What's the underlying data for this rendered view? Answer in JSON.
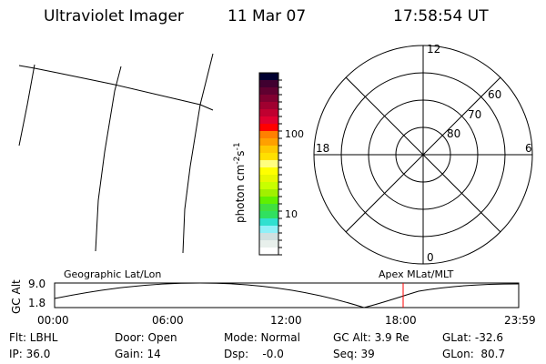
{
  "header": {
    "title": "Ultraviolet Imager",
    "date": "11 Mar 07",
    "time": "17:58:54 UT"
  },
  "colorbar": {
    "label": "photon cm",
    "label_exp1": "-2",
    "label_s": "s",
    "label_exp2": "-1",
    "ticks": [
      "100",
      "10"
    ],
    "colors": [
      "#000030",
      "#400030",
      "#600030",
      "#800030",
      "#a00030",
      "#c00030",
      "#e00030",
      "#ff0000",
      "#ff8000",
      "#ffa000",
      "#ffc800",
      "#ffe000",
      "#ffff80",
      "#ffff00",
      "#e8f800",
      "#c8ff00",
      "#a0f000",
      "#60f000",
      "#40e040",
      "#30e060",
      "#30e0d0",
      "#90f0f8",
      "#d0e0e0",
      "#e8f0ec",
      "#ffffff"
    ]
  },
  "polar": {
    "mlt_labels": {
      "top": "12",
      "bottom": "0",
      "left": "18",
      "right": "6"
    },
    "lat_labels": [
      "60",
      "70",
      "80"
    ]
  },
  "timeline": {
    "left_label": "Geographic Lat/Lon",
    "right_label": "Apex MLat/MLT",
    "y_label": "GC Alt",
    "y_ticks": [
      "9.0",
      "1.8"
    ],
    "x_ticks": [
      "00:00",
      "06:00",
      "12:00",
      "18:00",
      "23:59"
    ],
    "marker_time": "17:58",
    "marker_color": "#ff0000"
  },
  "status": {
    "flt": "Flt: LBHL",
    "ip": "IP: 36.0",
    "door": "Door: Open",
    "gain": "Gain: 14",
    "mode": "Mode: Normal",
    "dsp": "Dsp:    -0.0",
    "gcalt": "GC Alt: 3.9 Re",
    "seq": "Seq: 39",
    "glat": "GLat: -32.6",
    "glon": "GLon:  80.7"
  }
}
